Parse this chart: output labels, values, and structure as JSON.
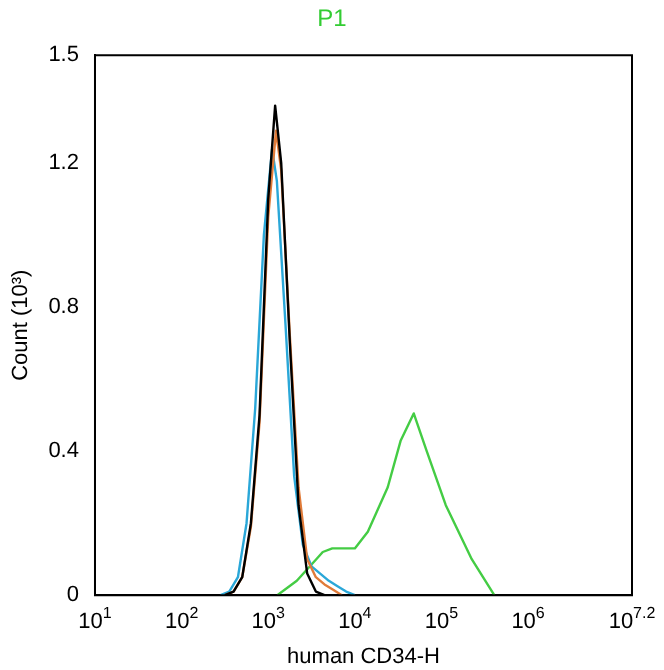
{
  "chart_data": {
    "type": "line",
    "title": "P1",
    "xlabel": "human CD34-H",
    "ylabel": "Count (10³)",
    "log": "x",
    "grid": false,
    "legend": false,
    "marker": "none",
    "line_style": "solid",
    "xlim": [
      10,
      15848932
    ],
    "xticks": [
      {
        "value": 10,
        "label": "10$^{1}$"
      },
      {
        "value": 100,
        "label": "10$^{2}$"
      },
      {
        "value": 1000,
        "label": "10$^{3}$"
      },
      {
        "value": 10000,
        "label": "10$^{4}$"
      },
      {
        "value": 100000,
        "label": "10$^{5}$"
      },
      {
        "value": 1000000,
        "label": "10$^{6}$"
      },
      {
        "value": 15848932,
        "label": "10$^{7.2}$"
      }
    ],
    "ylim": [
      0,
      1.5
    ],
    "yticks": [
      0,
      0.4,
      0.8,
      1.2,
      1.5
    ],
    "series": [
      {
        "color": "#000000",
        "x": [
          316,
          398,
          501,
          631,
          794,
          1000,
          1202,
          1413,
          1778,
          2239,
          2818,
          3548,
          4467
        ],
        "values": [
          0,
          0.01,
          0.05,
          0.2,
          0.5,
          1.1,
          1.36,
          1.2,
          0.7,
          0.25,
          0.06,
          0.01,
          0
        ]
      },
      {
        "color": "#e07b39",
        "x": [
          316,
          398,
          501,
          631,
          794,
          1000,
          1230,
          1413,
          1778,
          2239,
          2818,
          3548,
          4467,
          5623,
          7079
        ],
        "values": [
          0,
          0.01,
          0.05,
          0.19,
          0.48,
          1.05,
          1.29,
          1.18,
          0.72,
          0.3,
          0.1,
          0.05,
          0.03,
          0.015,
          0
        ]
      },
      {
        "color": "#2aa7d8",
        "x": [
          282,
          355,
          447,
          562,
          708,
          891,
          1109,
          1259,
          1585,
          1995,
          2512,
          3162,
          3981,
          5012,
          6310,
          7943,
          10000
        ],
        "values": [
          0,
          0.01,
          0.05,
          0.2,
          0.52,
          1.0,
          1.24,
          1.15,
          0.75,
          0.33,
          0.14,
          0.08,
          0.06,
          0.04,
          0.025,
          0.01,
          0
        ]
      },
      {
        "color": "#44cc44",
        "x": [
          1274,
          2138,
          3589,
          4266,
          5495,
          10000,
          14125,
          23988,
          33884,
          47863,
          67608,
          112202,
          223872,
          407380
        ],
        "values": [
          0,
          0.04,
          0.1,
          0.12,
          0.13,
          0.13,
          0.176,
          0.3,
          0.43,
          0.505,
          0.4,
          0.25,
          0.1,
          0
        ]
      }
    ]
  }
}
